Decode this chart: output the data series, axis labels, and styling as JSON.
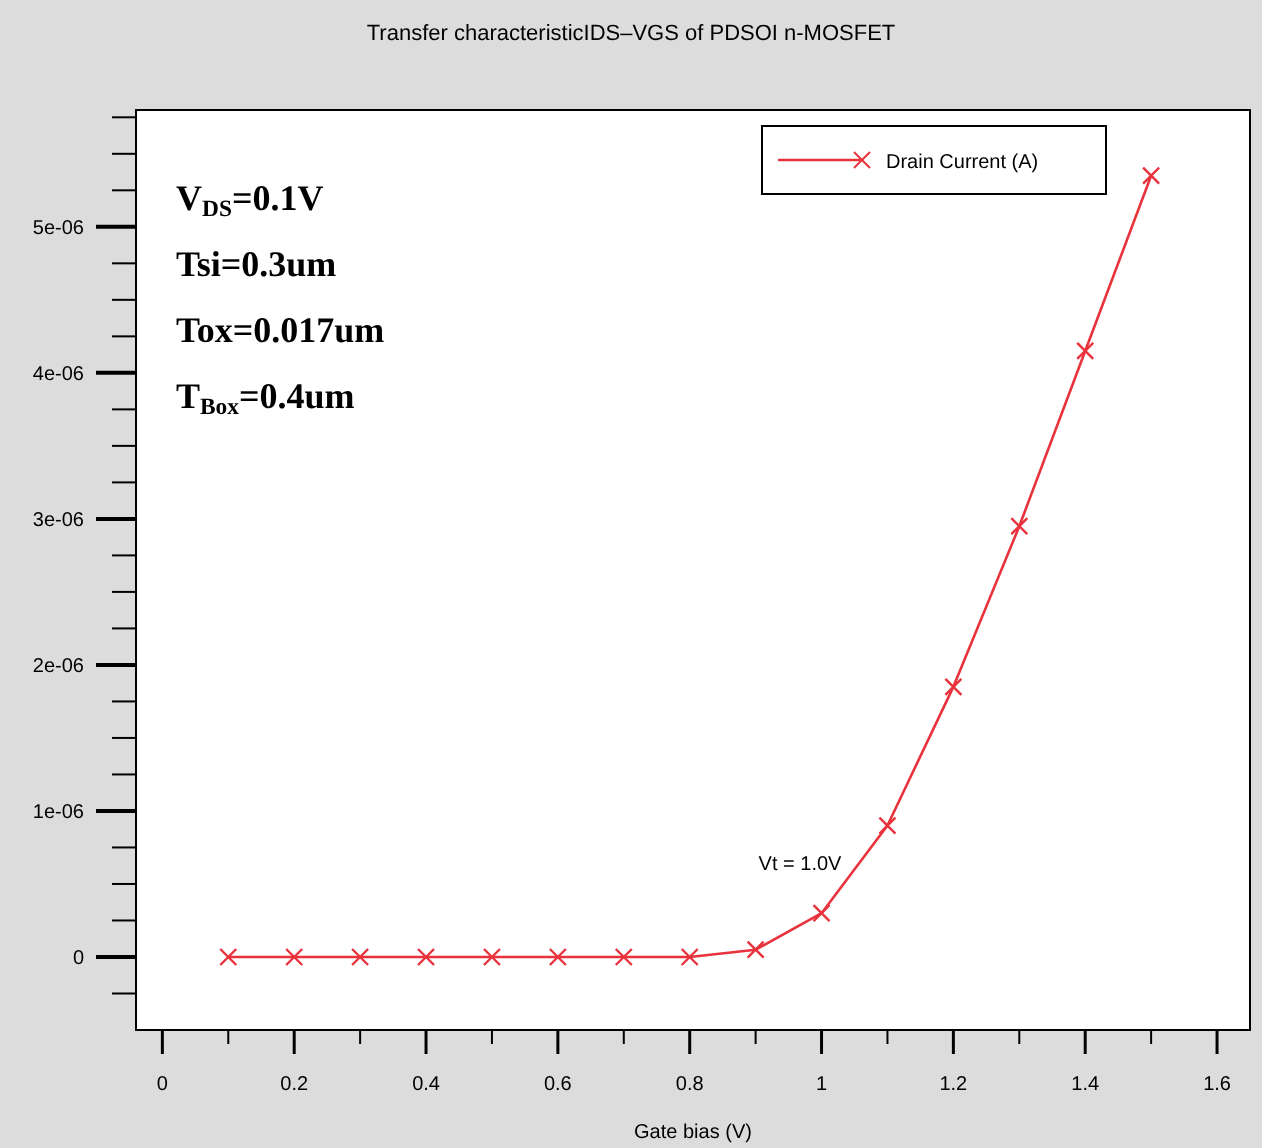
{
  "chart_data": {
    "type": "line",
    "title": "Transfer characteristicIDS–VGS of PDSOI n-MOSFET",
    "xlabel": "Gate bias (V)",
    "x": [
      0.1,
      0.2,
      0.3,
      0.4,
      0.5,
      0.6,
      0.7,
      0.8,
      0.9,
      1.0,
      1.1,
      1.2,
      1.3,
      1.4,
      1.5
    ],
    "series": [
      {
        "name": "Drain Current (A)",
        "color": "#e8323c",
        "values": [
          0,
          0,
          0,
          0,
          0,
          0,
          0,
          0,
          5e-08,
          3e-07,
          9e-07,
          1.85e-06,
          2.95e-06,
          4.15e-06,
          5.35e-06
        ]
      }
    ],
    "marker": "cross",
    "legend": "top right",
    "grid": false,
    "xlim": [
      -0.04,
      1.65
    ],
    "xticks": [
      0,
      {
        "value": 0.1,
        "label": null
      },
      0.2,
      {
        "value": 0.3,
        "label": null
      },
      0.4,
      {
        "value": 0.5,
        "label": null
      },
      0.6,
      {
        "value": 0.7,
        "label": null
      },
      0.8,
      {
        "value": 0.9,
        "label": null
      },
      1,
      {
        "value": 1.1,
        "label": null
      },
      1.2,
      {
        "value": 1.3,
        "label": null
      },
      1.4,
      {
        "value": 1.5,
        "label": null
      },
      1.6
    ],
    "ylim": [
      -5e-07,
      5.8e-06
    ],
    "yticks": [
      {
        "value": -2.5e-07,
        "label": null
      },
      {
        "value": 0,
        "label": "0"
      },
      {
        "value": 2.5e-07,
        "label": null
      },
      {
        "value": 5e-07,
        "label": null
      },
      {
        "value": 7.5e-07,
        "label": null
      },
      {
        "value": 1e-06,
        "label": "1e-06"
      },
      {
        "value": 1.25e-06,
        "label": null
      },
      {
        "value": 1.5e-06,
        "label": null
      },
      {
        "value": 1.75e-06,
        "label": null
      },
      {
        "value": 2e-06,
        "label": "2e-06"
      },
      {
        "value": 2.25e-06,
        "label": null
      },
      {
        "value": 2.5e-06,
        "label": null
      },
      {
        "value": 2.75e-06,
        "label": null
      },
      {
        "value": 3e-06,
        "label": "3e-06"
      },
      {
        "value": 3.25e-06,
        "label": null
      },
      {
        "value": 3.5e-06,
        "label": null
      },
      {
        "value": 3.75e-06,
        "label": null
      },
      {
        "value": 4e-06,
        "label": "4e-06"
      },
      {
        "value": 4.25e-06,
        "label": null
      },
      {
        "value": 4.5e-06,
        "label": null
      },
      {
        "value": 4.75e-06,
        "label": null
      },
      {
        "value": 5e-06,
        "label": "5e-06"
      },
      {
        "value": 5.25e-06,
        "label": null
      },
      {
        "value": 5.5e-06,
        "label": null
      },
      {
        "value": 5.75e-06,
        "label": null
      }
    ],
    "annotations": [
      "V$_{DS}$=0.1V",
      "Tsi=0.3um",
      "Tox=0.017um",
      "T$_{Box}$=0.4um",
      "Vt = 1.0V"
    ]
  }
}
